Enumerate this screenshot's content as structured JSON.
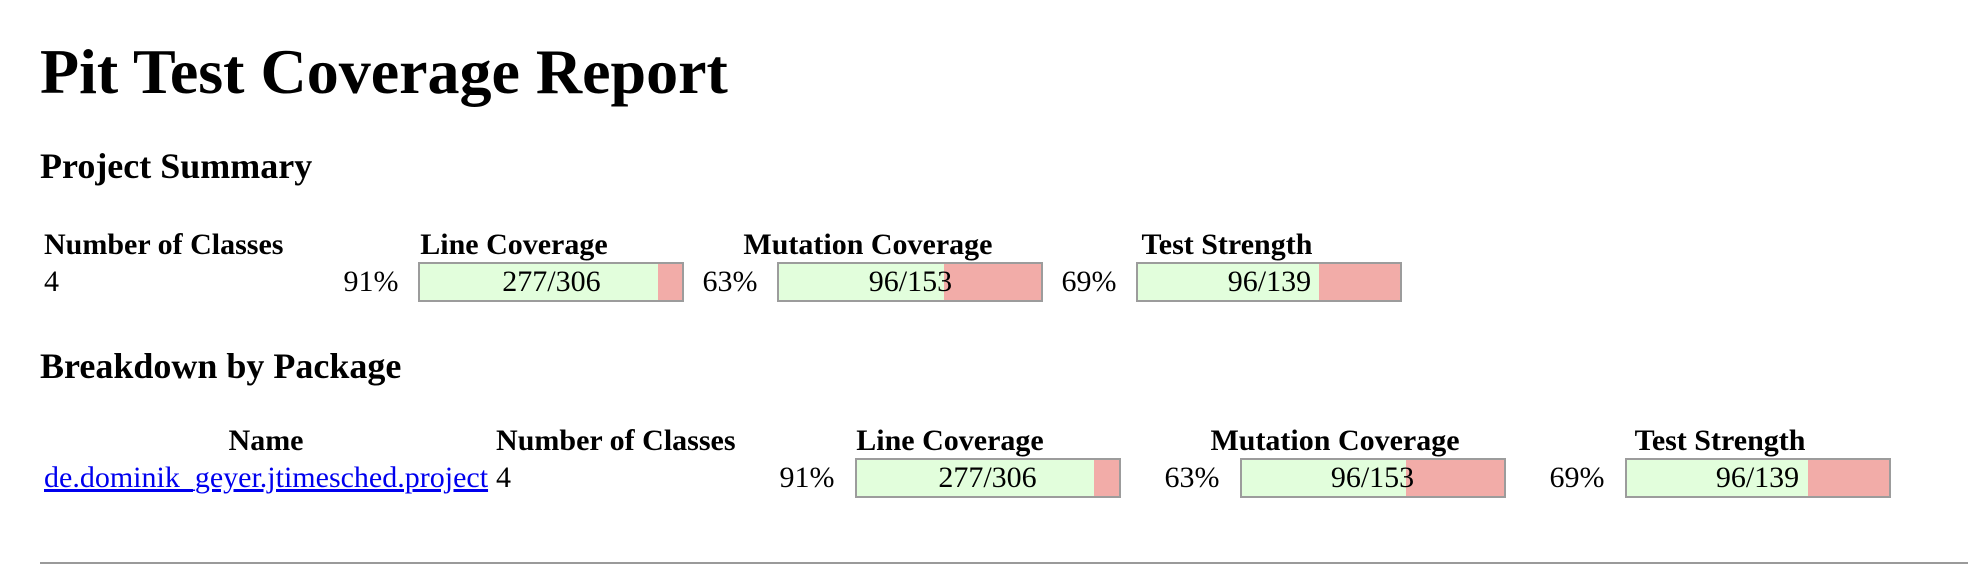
{
  "title": "Pit Test Coverage Report",
  "project_summary": {
    "heading": "Project Summary",
    "columns": [
      "Number of Classes",
      "Line Coverage",
      "Mutation Coverage",
      "Test Strength"
    ],
    "classes": "4",
    "line_coverage": {
      "percent": "91%",
      "legend": "277/306",
      "fraction": 0.905
    },
    "mutation_coverage": {
      "percent": "63%",
      "legend": "96/153",
      "fraction": 0.627
    },
    "test_strength": {
      "percent": "69%",
      "legend": "96/139",
      "fraction": 0.691
    }
  },
  "breakdown": {
    "heading": "Breakdown by Package",
    "columns": [
      "Name",
      "Number of Classes",
      "Line Coverage",
      "Mutation Coverage",
      "Test Strength"
    ],
    "rows": [
      {
        "name": "de.dominik_geyer.jtimesched.project",
        "classes": "4",
        "line_coverage": {
          "percent": "91%",
          "legend": "277/306",
          "fraction": 0.905
        },
        "mutation_coverage": {
          "percent": "63%",
          "legend": "96/153",
          "fraction": 0.627
        },
        "test_strength": {
          "percent": "69%",
          "legend": "96/139",
          "fraction": 0.691
        }
      }
    ]
  },
  "colors": {
    "covered": "#e2fedc",
    "uncovered": "#f2aca8",
    "bar_border": "#9c9c9c",
    "link": "#0000ee"
  }
}
